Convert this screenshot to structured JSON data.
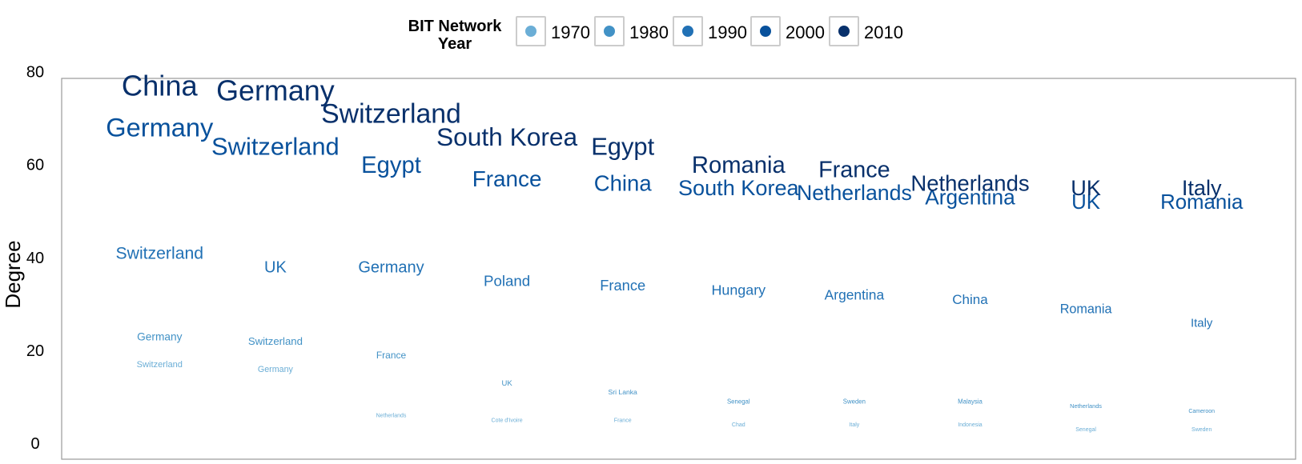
{
  "legend": {
    "title_line1": "BIT Network",
    "title_line2": "Year",
    "items": [
      {
        "label": "1970",
        "color": "#6baed6"
      },
      {
        "label": "1980",
        "color": "#4292c6"
      },
      {
        "label": "1990",
        "color": "#2171b5"
      },
      {
        "label": "2000",
        "color": "#08519c"
      },
      {
        "label": "2010",
        "color": "#08306b"
      }
    ]
  },
  "chart_data": {
    "type": "scatter",
    "ylabel": "Degree",
    "ylim": [
      0,
      82
    ],
    "yticks": [
      0,
      20,
      40,
      60,
      80
    ],
    "columns": 10,
    "series": [
      {
        "name": "1970",
        "color": "#6baed6",
        "points": [
          {
            "rank": 1,
            "label": "Switzerland",
            "degree": 17
          },
          {
            "rank": 2,
            "label": "Germany",
            "degree": 16
          },
          {
            "rank": 3,
            "label": "Netherlands",
            "degree": 6
          },
          {
            "rank": 4,
            "label": "Cote d'Ivoire",
            "degree": 5
          },
          {
            "rank": 5,
            "label": "France",
            "degree": 5
          },
          {
            "rank": 6,
            "label": "Chad",
            "degree": 4
          },
          {
            "rank": 7,
            "label": "Italy",
            "degree": 4
          },
          {
            "rank": 8,
            "label": "Indonesia",
            "degree": 4
          },
          {
            "rank": 9,
            "label": "Senegal",
            "degree": 3
          },
          {
            "rank": 10,
            "label": "Sweden",
            "degree": 3
          }
        ]
      },
      {
        "name": "1980",
        "color": "#4292c6",
        "points": [
          {
            "rank": 1,
            "label": "Germany",
            "degree": 23
          },
          {
            "rank": 2,
            "label": "Switzerland",
            "degree": 22
          },
          {
            "rank": 3,
            "label": "France",
            "degree": 19
          },
          {
            "rank": 4,
            "label": "UK",
            "degree": 13
          },
          {
            "rank": 5,
            "label": "Sri Lanka",
            "degree": 11
          },
          {
            "rank": 6,
            "label": "Senegal",
            "degree": 9
          },
          {
            "rank": 7,
            "label": "Sweden",
            "degree": 9
          },
          {
            "rank": 8,
            "label": "Malaysia",
            "degree": 9
          },
          {
            "rank": 9,
            "label": "Netherlands",
            "degree": 8
          },
          {
            "rank": 10,
            "label": "Cameroon",
            "degree": 7
          }
        ]
      },
      {
        "name": "1990",
        "color": "#2171b5",
        "points": [
          {
            "rank": 1,
            "label": "Switzerland",
            "degree": 41
          },
          {
            "rank": 2,
            "label": "UK",
            "degree": 38
          },
          {
            "rank": 3,
            "label": "Germany",
            "degree": 38
          },
          {
            "rank": 4,
            "label": "Poland",
            "degree": 35
          },
          {
            "rank": 5,
            "label": "France",
            "degree": 34
          },
          {
            "rank": 6,
            "label": "Hungary",
            "degree": 33
          },
          {
            "rank": 7,
            "label": "Argentina",
            "degree": 32
          },
          {
            "rank": 8,
            "label": "China",
            "degree": 31
          },
          {
            "rank": 9,
            "label": "Romania",
            "degree": 29
          },
          {
            "rank": 10,
            "label": "Italy",
            "degree": 26
          }
        ]
      },
      {
        "name": "2000",
        "color": "#08519c",
        "points": [
          {
            "rank": 1,
            "label": "Germany",
            "degree": 68
          },
          {
            "rank": 2,
            "label": "Switzerland",
            "degree": 64
          },
          {
            "rank": 3,
            "label": "Egypt",
            "degree": 60
          },
          {
            "rank": 4,
            "label": "France",
            "degree": 57
          },
          {
            "rank": 5,
            "label": "China",
            "degree": 56
          },
          {
            "rank": 6,
            "label": "South Korea",
            "degree": 55
          },
          {
            "rank": 7,
            "label": "Netherlands",
            "degree": 54
          },
          {
            "rank": 8,
            "label": "Argentina",
            "degree": 53
          },
          {
            "rank": 9,
            "label": "UK",
            "degree": 52
          },
          {
            "rank": 10,
            "label": "Romania",
            "degree": 52
          }
        ]
      },
      {
        "name": "2010",
        "color": "#08306b",
        "points": [
          {
            "rank": 1,
            "label": "China",
            "degree": 77
          },
          {
            "rank": 2,
            "label": "Germany",
            "degree": 76
          },
          {
            "rank": 3,
            "label": "Switzerland",
            "degree": 71
          },
          {
            "rank": 4,
            "label": "South Korea",
            "degree": 66
          },
          {
            "rank": 5,
            "label": "Egypt",
            "degree": 64
          },
          {
            "rank": 6,
            "label": "Romania",
            "degree": 60
          },
          {
            "rank": 7,
            "label": "France",
            "degree": 59
          },
          {
            "rank": 8,
            "label": "Netherlands",
            "degree": 56
          },
          {
            "rank": 9,
            "label": "UK",
            "degree": 55
          },
          {
            "rank": 10,
            "label": "Italy",
            "degree": 55
          }
        ]
      }
    ]
  }
}
